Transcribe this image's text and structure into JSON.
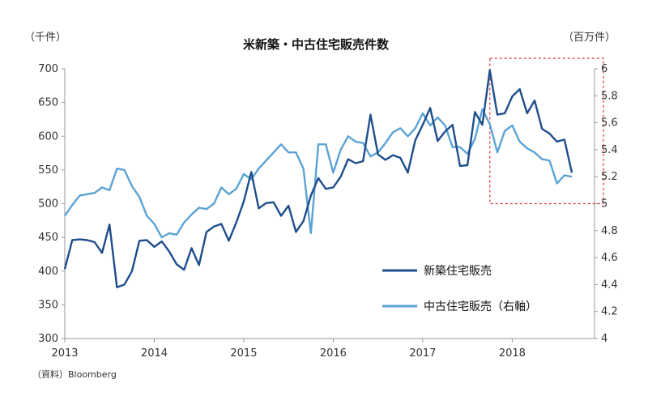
{
  "chart_data": {
    "type": "line",
    "title": "米新築・中古住宅販売件数",
    "left_unit": "（千件）",
    "right_unit": "（百万件）",
    "source": "（資料）Bloomberg",
    "x_ticks": [
      "2013",
      "2014",
      "2015",
      "2016",
      "2017",
      "2018"
    ],
    "left_axis": {
      "min": 300,
      "max": 700,
      "ticks": [
        "300",
        "350",
        "400",
        "450",
        "500",
        "550",
        "600",
        "650",
        "700"
      ]
    },
    "right_axis": {
      "min": 4,
      "max": 6,
      "ticks": [
        "4",
        "4.2",
        "4.4",
        "4.6",
        "4.8",
        "5",
        "5.2",
        "5.4",
        "5.6",
        "5.8",
        "6"
      ]
    },
    "highlight": {
      "x_start": 2017.75,
      "x_end": 2018.92,
      "style": "red dashed box"
    },
    "series": [
      {
        "name": "新築住宅販売",
        "axis": "left",
        "color": "#1f4e8c",
        "x_start": 2013.0,
        "x_step": 0.0833333,
        "values": [
          403,
          446,
          447,
          446,
          443,
          427,
          469,
          376,
          380,
          400,
          445,
          446,
          436,
          444,
          429,
          410,
          402,
          434,
          409,
          458,
          466,
          470,
          445,
          472,
          503,
          547,
          493,
          501,
          502,
          482,
          497,
          458,
          474,
          512,
          538,
          522,
          524,
          540,
          566,
          560,
          563,
          632,
          573,
          565,
          572,
          568,
          546,
          594,
          617,
          642,
          593,
          607,
          617,
          556,
          557,
          636,
          617,
          698,
          632,
          634,
          659,
          670,
          634,
          653,
          611,
          604,
          592,
          595,
          546
        ]
      },
      {
        "name": "中古住宅販売（右軸）",
        "axis": "right",
        "color": "#5ba3d4",
        "x_start": 2013.0,
        "x_step": 0.0833333,
        "values": [
          4.91,
          4.99,
          5.06,
          5.07,
          5.08,
          5.12,
          5.1,
          5.26,
          5.25,
          5.13,
          5.05,
          4.91,
          4.85,
          4.75,
          4.78,
          4.77,
          4.86,
          4.92,
          4.97,
          4.96,
          5.0,
          5.12,
          5.07,
          5.11,
          5.22,
          5.18,
          5.26,
          5.32,
          5.38,
          5.44,
          5.38,
          5.38,
          5.26,
          4.78,
          5.44,
          5.44,
          5.23,
          5.4,
          5.5,
          5.46,
          5.45,
          5.35,
          5.38,
          5.45,
          5.53,
          5.56,
          5.5,
          5.56,
          5.67,
          5.58,
          5.64,
          5.58,
          5.42,
          5.42,
          5.37,
          5.48,
          5.7,
          5.59,
          5.38,
          5.54,
          5.58,
          5.46,
          5.41,
          5.38,
          5.33,
          5.32,
          5.15,
          5.21,
          5.2
        ]
      }
    ]
  }
}
